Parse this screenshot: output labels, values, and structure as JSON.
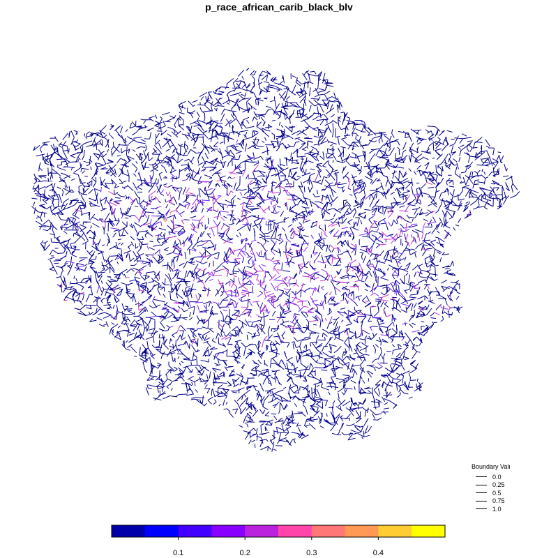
{
  "title": "p_race_african_carib_black_blv",
  "legend": {
    "title": "Boundary Valı",
    "entries": [
      "0.0",
      "0.25",
      "0.5",
      "0.75",
      "1.0"
    ]
  },
  "colorbar": {
    "colors": [
      "#0000aa",
      "#0000ff",
      "#4400ff",
      "#8800ff",
      "#bb22dd",
      "#ff44aa",
      "#ff7777",
      "#ff9955",
      "#ffcc33",
      "#ffff00"
    ],
    "min": 0.0,
    "max": 0.5,
    "ticks": [
      0.1,
      0.2,
      0.3,
      0.4
    ],
    "tick_labels": [
      "0.1",
      "0.2",
      "0.3",
      "0.4"
    ]
  },
  "map_colors": {
    "base": "#00008b",
    "mid": "#7b2bff",
    "high": "#cc33cc",
    "hot": "#ffaa33"
  }
}
